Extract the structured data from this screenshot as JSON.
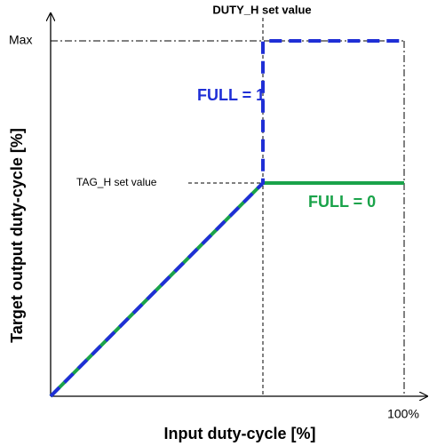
{
  "labels": {
    "duty_h": "DUTY_H set value",
    "max": "Max",
    "tag_h": "TAG_H set value",
    "x_end": "100%"
  },
  "annotations": {
    "full1": "FULL = 1",
    "full0": "FULL = 0"
  },
  "axes": {
    "x_label": "Input duty-cycle [%]",
    "y_label": "Target output duty-cycle [%]"
  }
}
